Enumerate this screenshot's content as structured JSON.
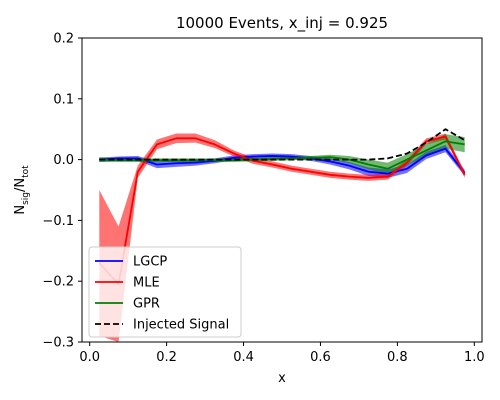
{
  "chart_data": {
    "type": "line",
    "title": "10000 Events, x_inj = 0.925",
    "xlabel": "x",
    "ylabel": "N_sig/N_tot",
    "xlim": [
      -0.02,
      1.02
    ],
    "ylim": [
      -0.3,
      0.2
    ],
    "xticks": [
      0.0,
      0.2,
      0.4,
      0.6,
      0.8,
      1.0
    ],
    "xtick_labels": [
      "0.0",
      "0.2",
      "0.4",
      "0.6",
      "0.8",
      "1.0"
    ],
    "yticks": [
      -0.3,
      -0.2,
      -0.1,
      0.0,
      0.1,
      0.2
    ],
    "ytick_labels": [
      "−0.3",
      "−0.2",
      "−0.1",
      "0.0",
      "0.1",
      "0.2"
    ],
    "legend_position": "lower-left",
    "grid": false,
    "x": [
      0.025,
      0.075,
      0.125,
      0.175,
      0.225,
      0.275,
      0.325,
      0.375,
      0.425,
      0.475,
      0.525,
      0.575,
      0.625,
      0.675,
      0.725,
      0.775,
      0.825,
      0.875,
      0.925,
      0.975
    ],
    "series": [
      {
        "name": "LGCP",
        "color": "#0000ff",
        "style": "solid",
        "values": [
          0.0,
          0.002,
          0.002,
          -0.008,
          -0.006,
          -0.005,
          -0.002,
          0.003,
          0.005,
          0.006,
          0.005,
          0.002,
          -0.003,
          -0.01,
          -0.02,
          -0.023,
          -0.015,
          0.007,
          0.018,
          -0.022
        ],
        "lower": [
          -0.004,
          -0.001,
          -0.002,
          -0.014,
          -0.012,
          -0.01,
          -0.006,
          -0.001,
          0.001,
          0.002,
          0.001,
          -0.002,
          -0.008,
          -0.016,
          -0.027,
          -0.03,
          -0.022,
          0.001,
          0.012,
          -0.027
        ],
        "upper": [
          0.003,
          0.005,
          0.006,
          -0.003,
          -0.001,
          0.0,
          0.002,
          0.007,
          0.009,
          0.01,
          0.009,
          0.006,
          0.002,
          -0.004,
          -0.013,
          -0.016,
          -0.008,
          0.013,
          0.024,
          -0.017
        ]
      },
      {
        "name": "MLE",
        "color": "#ff0000",
        "style": "solid",
        "values": [
          -0.17,
          -0.205,
          -0.02,
          0.025,
          0.035,
          0.035,
          0.025,
          0.01,
          -0.002,
          -0.008,
          -0.015,
          -0.02,
          -0.025,
          -0.028,
          -0.03,
          -0.028,
          -0.005,
          0.03,
          0.038,
          -0.025
        ],
        "lower": [
          -0.29,
          -0.3,
          -0.03,
          0.017,
          0.027,
          0.028,
          0.019,
          0.005,
          -0.007,
          -0.013,
          -0.02,
          -0.025,
          -0.03,
          -0.033,
          -0.035,
          -0.033,
          -0.01,
          0.025,
          0.033,
          -0.03
        ],
        "upper": [
          -0.05,
          -0.11,
          -0.01,
          0.033,
          0.043,
          0.043,
          0.032,
          0.015,
          0.003,
          -0.003,
          -0.01,
          -0.015,
          -0.02,
          -0.023,
          -0.025,
          -0.023,
          0.0,
          0.035,
          0.043,
          -0.02
        ]
      },
      {
        "name": "GPR",
        "color": "#008000",
        "style": "solid",
        "values": [
          0.0,
          -0.001,
          -0.001,
          -0.001,
          -0.001,
          -0.001,
          -0.001,
          -0.001,
          0.0,
          0.001,
          0.002,
          0.003,
          0.004,
          0.0,
          -0.008,
          -0.015,
          0.0,
          0.015,
          0.03,
          0.025
        ],
        "lower": [
          -0.004,
          -0.004,
          -0.004,
          -0.004,
          -0.004,
          -0.004,
          -0.004,
          -0.004,
          -0.003,
          -0.002,
          -0.001,
          0.0,
          0.0,
          -0.006,
          -0.016,
          -0.025,
          -0.009,
          0.005,
          0.018,
          0.012
        ],
        "upper": [
          0.004,
          0.002,
          0.002,
          0.002,
          0.002,
          0.002,
          0.002,
          0.002,
          0.003,
          0.004,
          0.005,
          0.006,
          0.008,
          0.006,
          0.0,
          -0.005,
          0.009,
          0.025,
          0.042,
          0.037
        ]
      },
      {
        "name": "Injected Signal",
        "color": "#000000",
        "style": "dashed",
        "values": [
          0.0,
          0.0,
          0.0,
          0.0,
          0.0,
          0.0,
          0.0,
          0.0,
          0.0,
          0.0,
          0.0,
          0.0,
          0.0,
          0.0,
          0.0,
          0.002,
          0.01,
          0.028,
          0.05,
          0.032
        ]
      }
    ]
  }
}
